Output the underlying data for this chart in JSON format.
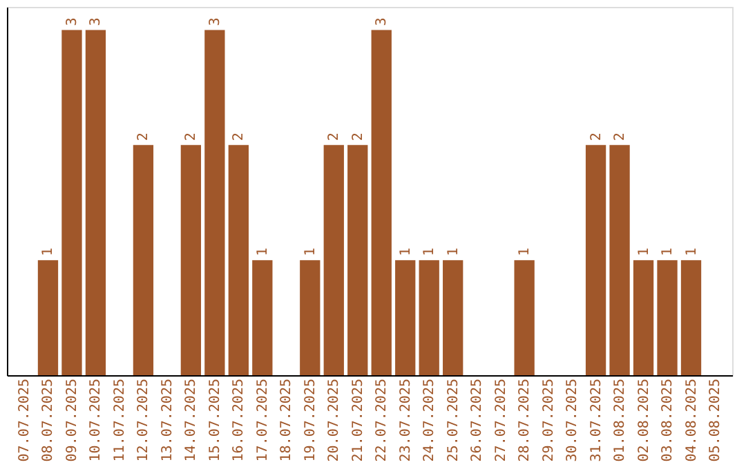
{
  "chart_data": {
    "type": "bar",
    "categories": [
      "07.07.2025",
      "08.07.2025",
      "09.07.2025",
      "10.07.2025",
      "11.07.2025",
      "12.07.2025",
      "13.07.2025",
      "14.07.2025",
      "15.07.2025",
      "16.07.2025",
      "17.07.2025",
      "18.07.2025",
      "19.07.2025",
      "20.07.2025",
      "21.07.2025",
      "22.07.2025",
      "23.07.2025",
      "24.07.2025",
      "25.07.2025",
      "26.07.2025",
      "27.07.2025",
      "28.07.2025",
      "29.07.2025",
      "30.07.2025",
      "31.07.2025",
      "01.08.2025",
      "02.08.2025",
      "03.08.2025",
      "04.08.2025",
      "05.08.2025"
    ],
    "values": [
      0,
      1,
      3,
      3,
      0,
      2,
      0,
      2,
      3,
      2,
      1,
      0,
      1,
      2,
      2,
      3,
      1,
      1,
      1,
      0,
      0,
      1,
      0,
      0,
      2,
      2,
      1,
      1,
      1,
      0
    ],
    "value_labels": [
      null,
      "1",
      "3",
      "3",
      null,
      "2",
      null,
      "2",
      "3",
      "2",
      "1",
      null,
      "1",
      "2",
      "2",
      "3",
      "1",
      "1",
      "1",
      null,
      null,
      "1",
      null,
      null,
      "2",
      "2",
      "1",
      "1",
      "1",
      null
    ],
    "color": "#a0572a",
    "ylim": [
      0,
      3.2
    ],
    "tick_labels": "x",
    "grid": false
  }
}
